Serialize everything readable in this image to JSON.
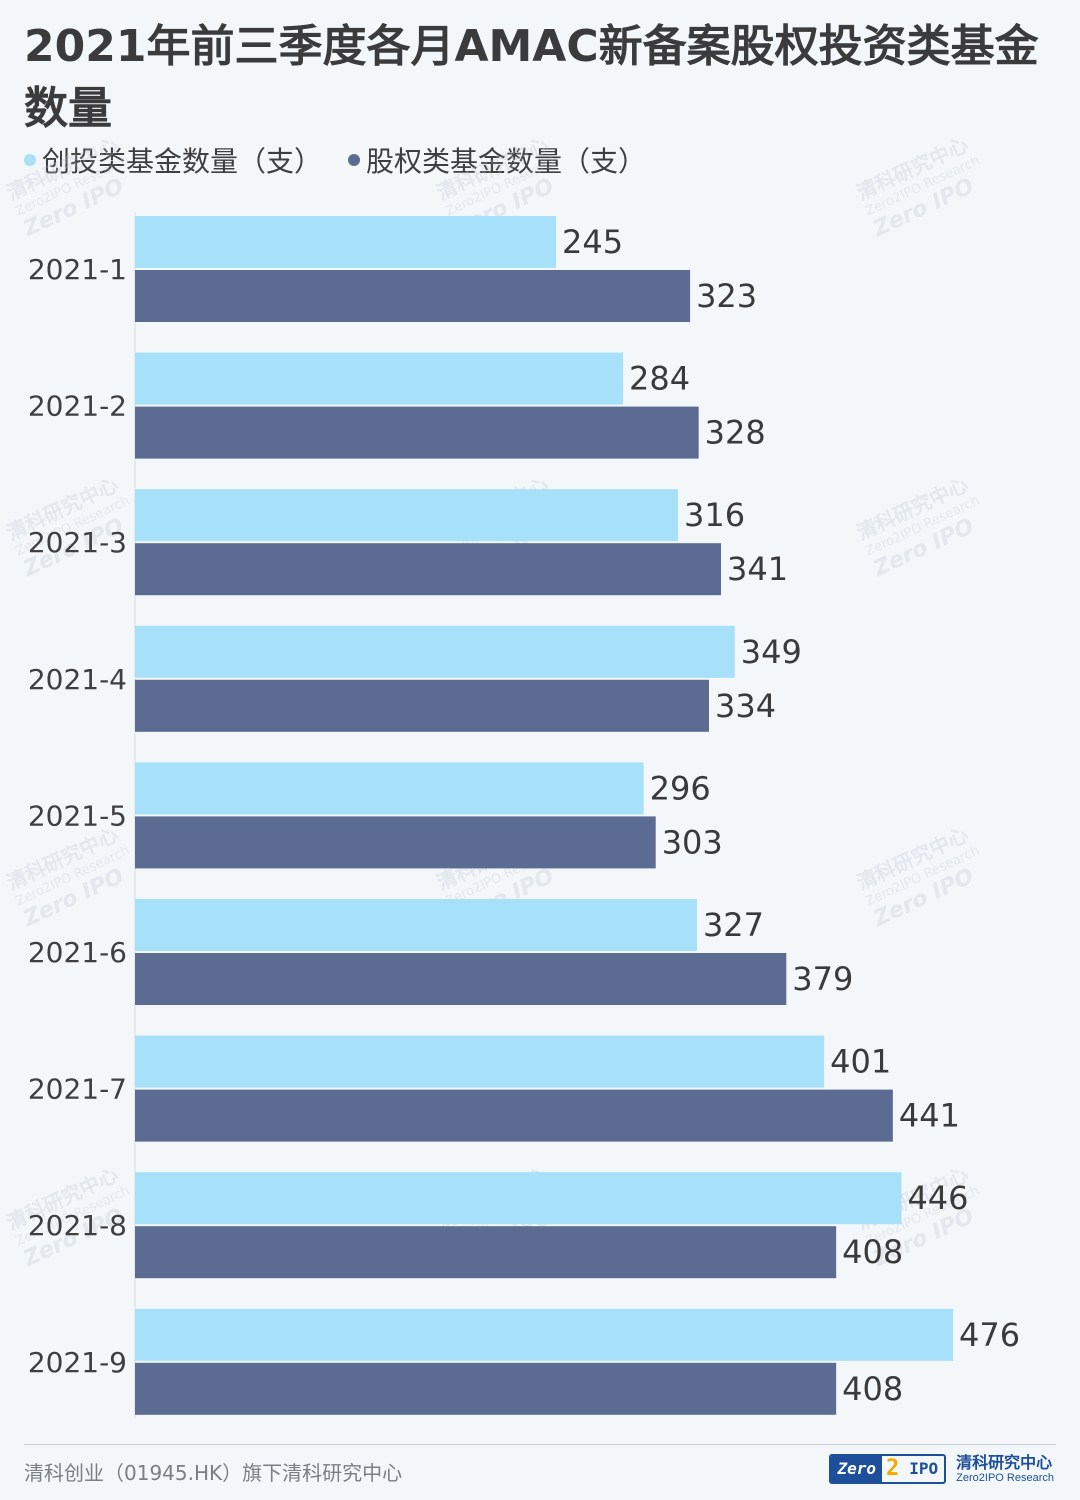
{
  "title": "2021年前三季度各月AMAC新备案股权投资类基金数量",
  "legend": [
    {
      "label": "创投类基金数量（支）",
      "color": "#a6e0f9"
    },
    {
      "label": "股权类基金数量（支）",
      "color": "#5b6b92"
    }
  ],
  "watermark": {
    "cn": "清科研究中心",
    "en": "Zero2IPO Research",
    "logo": "Zero IPO"
  },
  "footer": {
    "source": "清科创业（01945.HK）旗下清科研究中心",
    "logo_zero": "Zero",
    "logo_two": "2",
    "logo_ipo": "IPO",
    "logo_cn": "清科研究中心",
    "logo_en": "Zero2IPO Research"
  },
  "chart_data": {
    "type": "bar",
    "orientation": "horizontal",
    "categories": [
      "2021-1",
      "2021-2",
      "2021-3",
      "2021-4",
      "2021-5",
      "2021-6",
      "2021-7",
      "2021-8",
      "2021-9"
    ],
    "series": [
      {
        "name": "创投类基金数量（支）",
        "values": [
          245,
          284,
          316,
          349,
          296,
          327,
          401,
          446,
          476
        ],
        "color": "#a6e0f9"
      },
      {
        "name": "股权类基金数量（支）",
        "values": [
          323,
          328,
          341,
          334,
          303,
          379,
          441,
          408,
          408
        ],
        "color": "#5b6b92"
      }
    ],
    "data_labels": true,
    "grid": false,
    "legend_position": "top-left"
  }
}
